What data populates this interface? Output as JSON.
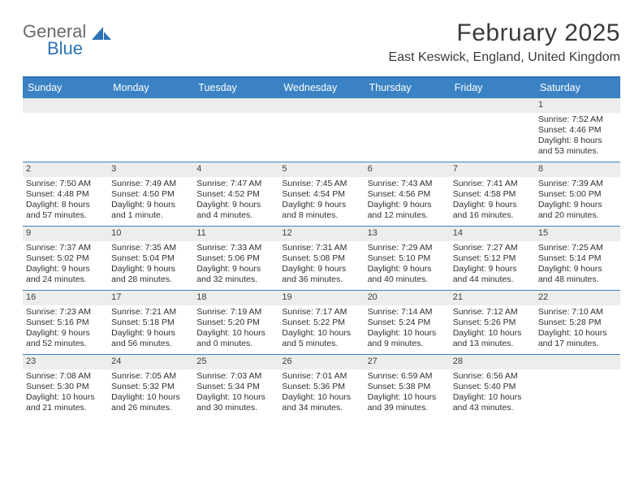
{
  "brand": {
    "word1": "General",
    "word2": "Blue"
  },
  "title": "February 2025",
  "location": "East Keswick, England, United Kingdom",
  "header_color": "#3a82c4",
  "border_color": "#2d73b6",
  "bg_bar": "#eceded",
  "day_names": [
    "Sunday",
    "Monday",
    "Tuesday",
    "Wednesday",
    "Thursday",
    "Friday",
    "Saturday"
  ],
  "weeks": [
    [
      {
        "n": ""
      },
      {
        "n": ""
      },
      {
        "n": ""
      },
      {
        "n": ""
      },
      {
        "n": ""
      },
      {
        "n": ""
      },
      {
        "n": "1",
        "sr": "Sunrise: 7:52 AM",
        "ss": "Sunset: 4:46 PM",
        "dl1": "Daylight: 8 hours",
        "dl2": "and 53 minutes."
      }
    ],
    [
      {
        "n": "2",
        "sr": "Sunrise: 7:50 AM",
        "ss": "Sunset: 4:48 PM",
        "dl1": "Daylight: 8 hours",
        "dl2": "and 57 minutes."
      },
      {
        "n": "3",
        "sr": "Sunrise: 7:49 AM",
        "ss": "Sunset: 4:50 PM",
        "dl1": "Daylight: 9 hours",
        "dl2": "and 1 minute."
      },
      {
        "n": "4",
        "sr": "Sunrise: 7:47 AM",
        "ss": "Sunset: 4:52 PM",
        "dl1": "Daylight: 9 hours",
        "dl2": "and 4 minutes."
      },
      {
        "n": "5",
        "sr": "Sunrise: 7:45 AM",
        "ss": "Sunset: 4:54 PM",
        "dl1": "Daylight: 9 hours",
        "dl2": "and 8 minutes."
      },
      {
        "n": "6",
        "sr": "Sunrise: 7:43 AM",
        "ss": "Sunset: 4:56 PM",
        "dl1": "Daylight: 9 hours",
        "dl2": "and 12 minutes."
      },
      {
        "n": "7",
        "sr": "Sunrise: 7:41 AM",
        "ss": "Sunset: 4:58 PM",
        "dl1": "Daylight: 9 hours",
        "dl2": "and 16 minutes."
      },
      {
        "n": "8",
        "sr": "Sunrise: 7:39 AM",
        "ss": "Sunset: 5:00 PM",
        "dl1": "Daylight: 9 hours",
        "dl2": "and 20 minutes."
      }
    ],
    [
      {
        "n": "9",
        "sr": "Sunrise: 7:37 AM",
        "ss": "Sunset: 5:02 PM",
        "dl1": "Daylight: 9 hours",
        "dl2": "and 24 minutes."
      },
      {
        "n": "10",
        "sr": "Sunrise: 7:35 AM",
        "ss": "Sunset: 5:04 PM",
        "dl1": "Daylight: 9 hours",
        "dl2": "and 28 minutes."
      },
      {
        "n": "11",
        "sr": "Sunrise: 7:33 AM",
        "ss": "Sunset: 5:06 PM",
        "dl1": "Daylight: 9 hours",
        "dl2": "and 32 minutes."
      },
      {
        "n": "12",
        "sr": "Sunrise: 7:31 AM",
        "ss": "Sunset: 5:08 PM",
        "dl1": "Daylight: 9 hours",
        "dl2": "and 36 minutes."
      },
      {
        "n": "13",
        "sr": "Sunrise: 7:29 AM",
        "ss": "Sunset: 5:10 PM",
        "dl1": "Daylight: 9 hours",
        "dl2": "and 40 minutes."
      },
      {
        "n": "14",
        "sr": "Sunrise: 7:27 AM",
        "ss": "Sunset: 5:12 PM",
        "dl1": "Daylight: 9 hours",
        "dl2": "and 44 minutes."
      },
      {
        "n": "15",
        "sr": "Sunrise: 7:25 AM",
        "ss": "Sunset: 5:14 PM",
        "dl1": "Daylight: 9 hours",
        "dl2": "and 48 minutes."
      }
    ],
    [
      {
        "n": "16",
        "sr": "Sunrise: 7:23 AM",
        "ss": "Sunset: 5:16 PM",
        "dl1": "Daylight: 9 hours",
        "dl2": "and 52 minutes."
      },
      {
        "n": "17",
        "sr": "Sunrise: 7:21 AM",
        "ss": "Sunset: 5:18 PM",
        "dl1": "Daylight: 9 hours",
        "dl2": "and 56 minutes."
      },
      {
        "n": "18",
        "sr": "Sunrise: 7:19 AM",
        "ss": "Sunset: 5:20 PM",
        "dl1": "Daylight: 10 hours",
        "dl2": "and 0 minutes."
      },
      {
        "n": "19",
        "sr": "Sunrise: 7:17 AM",
        "ss": "Sunset: 5:22 PM",
        "dl1": "Daylight: 10 hours",
        "dl2": "and 5 minutes."
      },
      {
        "n": "20",
        "sr": "Sunrise: 7:14 AM",
        "ss": "Sunset: 5:24 PM",
        "dl1": "Daylight: 10 hours",
        "dl2": "and 9 minutes."
      },
      {
        "n": "21",
        "sr": "Sunrise: 7:12 AM",
        "ss": "Sunset: 5:26 PM",
        "dl1": "Daylight: 10 hours",
        "dl2": "and 13 minutes."
      },
      {
        "n": "22",
        "sr": "Sunrise: 7:10 AM",
        "ss": "Sunset: 5:28 PM",
        "dl1": "Daylight: 10 hours",
        "dl2": "and 17 minutes."
      }
    ],
    [
      {
        "n": "23",
        "sr": "Sunrise: 7:08 AM",
        "ss": "Sunset: 5:30 PM",
        "dl1": "Daylight: 10 hours",
        "dl2": "and 21 minutes."
      },
      {
        "n": "24",
        "sr": "Sunrise: 7:05 AM",
        "ss": "Sunset: 5:32 PM",
        "dl1": "Daylight: 10 hours",
        "dl2": "and 26 minutes."
      },
      {
        "n": "25",
        "sr": "Sunrise: 7:03 AM",
        "ss": "Sunset: 5:34 PM",
        "dl1": "Daylight: 10 hours",
        "dl2": "and 30 minutes."
      },
      {
        "n": "26",
        "sr": "Sunrise: 7:01 AM",
        "ss": "Sunset: 5:36 PM",
        "dl1": "Daylight: 10 hours",
        "dl2": "and 34 minutes."
      },
      {
        "n": "27",
        "sr": "Sunrise: 6:59 AM",
        "ss": "Sunset: 5:38 PM",
        "dl1": "Daylight: 10 hours",
        "dl2": "and 39 minutes."
      },
      {
        "n": "28",
        "sr": "Sunrise: 6:56 AM",
        "ss": "Sunset: 5:40 PM",
        "dl1": "Daylight: 10 hours",
        "dl2": "and 43 minutes."
      },
      {
        "n": ""
      }
    ]
  ]
}
